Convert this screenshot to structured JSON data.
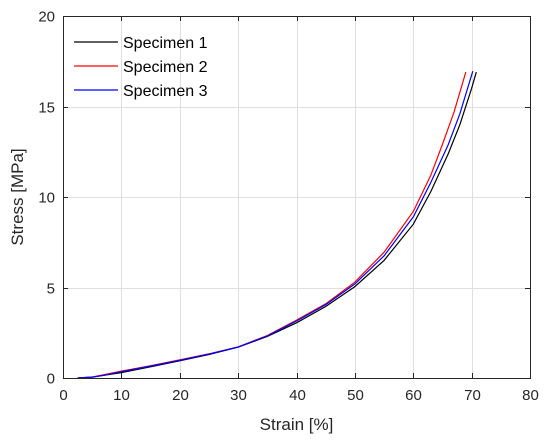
{
  "chart_data": {
    "type": "line",
    "xlabel": "Strain [%]",
    "ylabel": "Stress [MPa]",
    "xlim": [
      0,
      80
    ],
    "ylim": [
      0,
      20
    ],
    "xticks": [
      0,
      10,
      20,
      30,
      40,
      50,
      60,
      70,
      80
    ],
    "yticks": [
      0,
      5,
      10,
      15,
      20
    ],
    "grid": true,
    "legend_position": "top-left",
    "series": [
      {
        "name": "Specimen 1",
        "color": "#000000",
        "x": [
          2.5,
          5,
          7,
          10,
          15,
          20,
          25,
          30,
          35,
          40,
          45,
          50,
          55,
          60,
          63,
          66,
          68,
          70,
          70.8
        ],
        "y": [
          0,
          0.05,
          0.15,
          0.3,
          0.62,
          0.95,
          1.3,
          1.7,
          2.3,
          3.05,
          3.95,
          5.05,
          6.5,
          8.5,
          10.3,
          12.4,
          14.0,
          16.0,
          16.9
        ]
      },
      {
        "name": "Specimen 2",
        "color": "#ff0000",
        "x": [
          2.5,
          5,
          7,
          10,
          15,
          20,
          25,
          30,
          35,
          40,
          45,
          50,
          55,
          60,
          63,
          65,
          67,
          69
        ],
        "y": [
          0,
          0.05,
          0.18,
          0.38,
          0.68,
          1.0,
          1.33,
          1.72,
          2.35,
          3.2,
          4.1,
          5.3,
          6.95,
          9.2,
          11.2,
          12.9,
          14.7,
          16.9
        ]
      },
      {
        "name": "Specimen 3",
        "color": "#0000ff",
        "x": [
          2.5,
          5,
          7,
          10,
          15,
          20,
          25,
          30,
          35,
          40,
          45,
          50,
          55,
          60,
          63,
          66,
          68,
          70.2
        ],
        "y": [
          0,
          0.05,
          0.15,
          0.35,
          0.66,
          0.98,
          1.32,
          1.71,
          2.32,
          3.15,
          4.05,
          5.2,
          6.75,
          8.9,
          10.8,
          12.9,
          14.6,
          16.95
        ]
      }
    ]
  }
}
